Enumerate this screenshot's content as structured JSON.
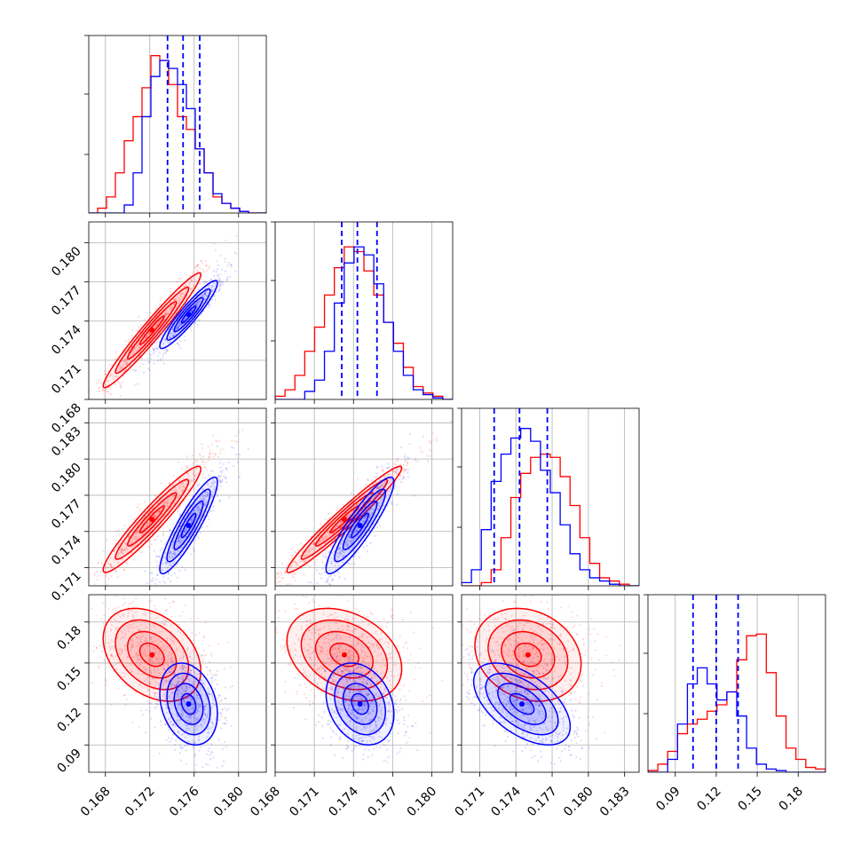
{
  "chart_data": {
    "type": "corner",
    "colors": {
      "series_a": "#ff0000",
      "series_b": "#0000ff",
      "quantile_lines": "#0000ff",
      "grid": "#b0b0b0"
    },
    "grid": true,
    "parameters": [
      {
        "range": [
          0.1665,
          0.1825
        ],
        "ticks": [
          "0.168",
          "0.172",
          "0.176",
          "0.180"
        ]
      },
      {
        "range": [
          0.168,
          0.1816
        ],
        "ticks": [
          "0.168",
          "0.171",
          "0.174",
          "0.177",
          "0.180"
        ]
      },
      {
        "range": [
          0.1695,
          0.1842
        ],
        "ticks": [
          "0.171",
          "0.174",
          "0.177",
          "0.180",
          "0.183"
        ]
      },
      {
        "range": [
          0.07,
          0.2
        ],
        "ticks": [
          "0.09",
          "0.12",
          "0.15",
          "0.18"
        ]
      }
    ],
    "series": [
      {
        "color": "#ff0000",
        "mean": [
          0.1722,
          0.1733,
          0.175,
          0.156
        ],
        "sd": [
          0.0022,
          0.0022,
          0.0022,
          0.017
        ],
        "corr": [
          [
            1,
            0.97,
            0.95,
            -0.35
          ],
          [
            0.97,
            1,
            0.97,
            -0.3
          ],
          [
            0.95,
            0.97,
            1,
            -0.2
          ],
          [
            -0.35,
            -0.3,
            -0.2,
            1
          ]
        ]
      },
      {
        "color": "#0000ff",
        "mean": [
          0.1755,
          0.1745,
          0.1745,
          0.12
        ],
        "sd": [
          0.0013,
          0.0013,
          0.002,
          0.015
        ],
        "corr": [
          [
            1,
            0.93,
            0.9,
            -0.25
          ],
          [
            0.93,
            1,
            0.9,
            -0.25
          ],
          [
            0.9,
            0.9,
            1,
            -0.55
          ],
          [
            -0.25,
            -0.25,
            -0.55,
            1
          ]
        ]
      }
    ],
    "quantile_lines": [
      [
        0.1736,
        0.175,
        0.1765
      ],
      [
        0.1731,
        0.1743,
        0.1758
      ],
      [
        0.1722,
        0.1743,
        0.1766
      ],
      [
        0.103,
        0.12,
        0.136
      ]
    ],
    "histograms": [
      {
        "bins": [
          0.1665,
          0.1825
        ],
        "series_a": [
          0,
          0.03,
          0.1,
          0.25,
          0.45,
          0.6,
          0.78,
          0.98,
          0.95,
          0.8,
          0.6,
          0.52,
          0.4,
          0.25,
          0.1,
          0.06,
          0.03,
          0.01,
          0,
          0
        ],
        "series_b": [
          0,
          0,
          0,
          0,
          0.05,
          0.25,
          0.6,
          0.85,
          0.95,
          0.9,
          0.8,
          0.65,
          0.4,
          0.25,
          0.12,
          0.06,
          0.03,
          0.01,
          0,
          0
        ]
      },
      {
        "bins": [
          0.168,
          0.1816
        ],
        "series_a": [
          0.02,
          0.06,
          0.15,
          0.3,
          0.45,
          0.65,
          0.82,
          0.95,
          0.92,
          0.8,
          0.65,
          0.48,
          0.35,
          0.2,
          0.08,
          0.04,
          0.02,
          0
        ],
        "series_b": [
          0,
          0,
          0,
          0.05,
          0.12,
          0.3,
          0.6,
          0.85,
          0.95,
          0.9,
          0.72,
          0.48,
          0.3,
          0.15,
          0.06,
          0.03,
          0.01,
          0
        ]
      },
      {
        "bins": [
          0.1695,
          0.1842
        ],
        "series_a": [
          0,
          0,
          0.02,
          0.1,
          0.3,
          0.55,
          0.7,
          0.8,
          0.82,
          0.8,
          0.68,
          0.5,
          0.3,
          0.14,
          0.05,
          0.03,
          0.01,
          0
        ],
        "series_b": [
          0.02,
          0.1,
          0.35,
          0.65,
          0.82,
          0.92,
          0.98,
          0.9,
          0.72,
          0.58,
          0.38,
          0.2,
          0.1,
          0.05,
          0.03,
          0.01,
          0,
          0
        ]
      },
      {
        "bins": [
          0.07,
          0.2
        ],
        "series_a": [
          0.01,
          0.05,
          0.13,
          0.24,
          0.3,
          0.33,
          0.38,
          0.42,
          0.5,
          0.7,
          0.85,
          0.86,
          0.62,
          0.35,
          0.15,
          0.08,
          0.03,
          0.02
        ],
        "series_b": [
          0,
          0,
          0.08,
          0.3,
          0.55,
          0.65,
          0.55,
          0.45,
          0.5,
          0.35,
          0.15,
          0.05,
          0.02,
          0.01,
          0,
          0,
          0,
          0
        ]
      }
    ]
  }
}
